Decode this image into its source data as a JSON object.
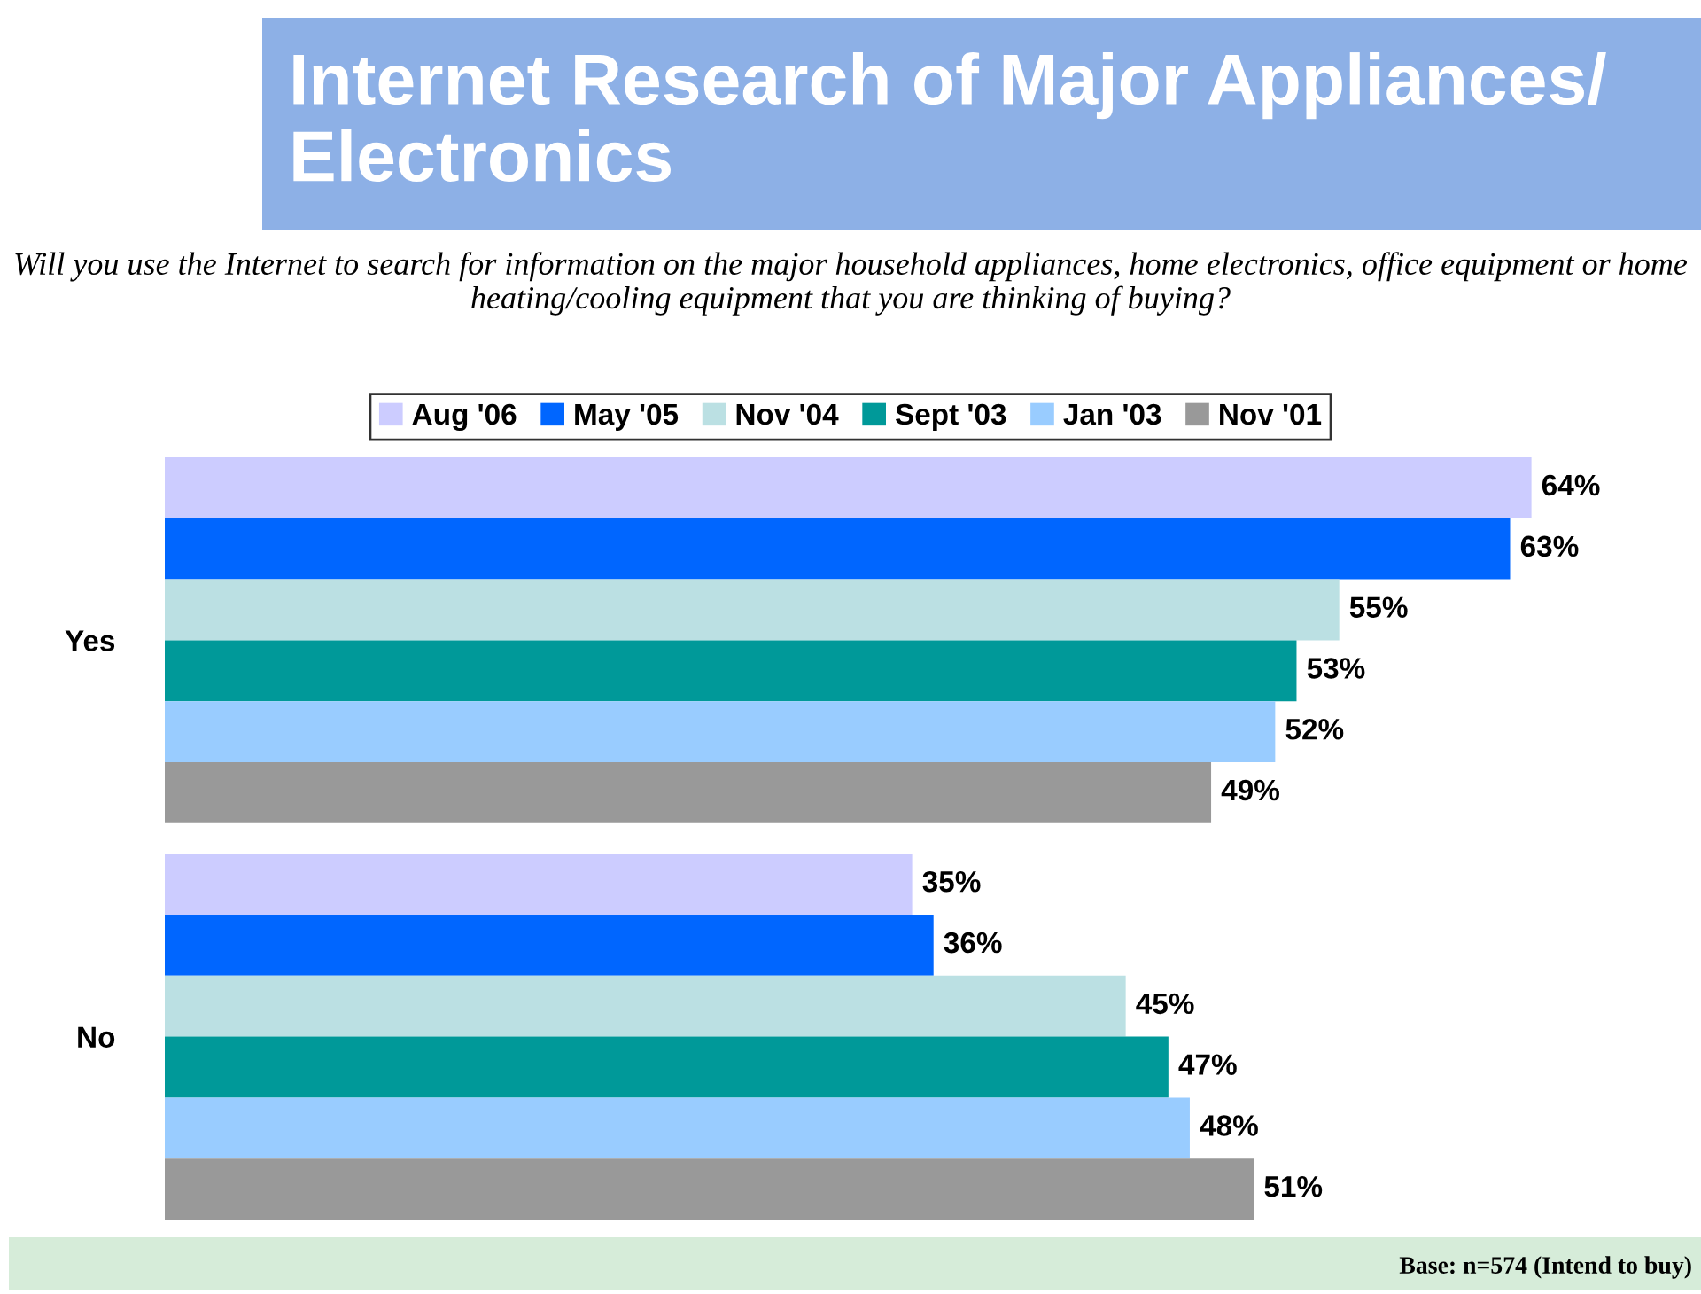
{
  "chart_data": {
    "type": "bar",
    "orientation": "horizontal",
    "title": "Internet Research of Major Appliances/ Electronics",
    "subtitle": "Will you use the Internet to search for information on the major household appliances, home electronics, office equipment or home heating/cooling equipment that you are thinking of buying?",
    "categories": [
      "Yes",
      "No"
    ],
    "series": [
      {
        "name": "Aug '06",
        "color": "#ccccff",
        "values": [
          64,
          35
        ],
        "value_labels": [
          "64%",
          "35%"
        ]
      },
      {
        "name": "May '05",
        "color": "#0066ff",
        "values": [
          63,
          36
        ],
        "value_labels": [
          "63%",
          "36%"
        ]
      },
      {
        "name": "Nov '04",
        "color": "#bbe0e3",
        "values": [
          55,
          45
        ],
        "value_labels": [
          "55%",
          "45%"
        ]
      },
      {
        "name": "Sept '03",
        "color": "#009999",
        "values": [
          53,
          47
        ],
        "value_labels": [
          "53%",
          "47%"
        ]
      },
      {
        "name": "Jan '03",
        "color": "#99ccff",
        "values": [
          52,
          48
        ],
        "value_labels": [
          "52%",
          "48%"
        ]
      },
      {
        "name": "Nov '01",
        "color": "#999999",
        "values": [
          49,
          51
        ],
        "value_labels": [
          "49%",
          "51%"
        ]
      }
    ],
    "legend": "top",
    "grid": false,
    "annotations": [
      "Base: n=574 (Intend to buy)"
    ]
  }
}
